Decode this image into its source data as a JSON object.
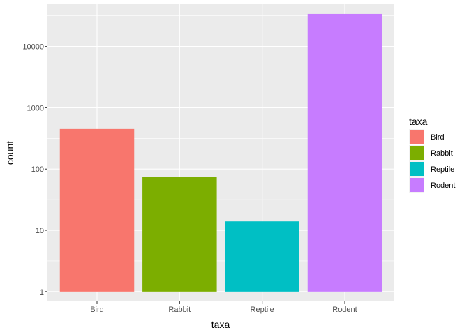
{
  "chart_data": {
    "type": "bar",
    "title": "",
    "xlabel": "taxa",
    "ylabel": "count",
    "y_scale": "log10",
    "ylim": [
      0.69,
      49000
    ],
    "grid": true,
    "categories": [
      "Bird",
      "Rabbit",
      "Reptile",
      "Rodent"
    ],
    "values": [
      450,
      75,
      14,
      34000
    ],
    "colors": [
      "#F8766D",
      "#7CAE00",
      "#00BFC4",
      "#C77CFF"
    ],
    "y_ticks": [
      1,
      10,
      100,
      1000,
      10000
    ],
    "y_tick_labels": [
      "1",
      "10",
      "100",
      "1000",
      "10000"
    ],
    "legend": {
      "title": "taxa",
      "position": "right",
      "entries": [
        "Bird",
        "Rabbit",
        "Reptile",
        "Rodent"
      ]
    },
    "panel_background": "#EBEBEB",
    "grid_color": "#FFFFFF"
  }
}
